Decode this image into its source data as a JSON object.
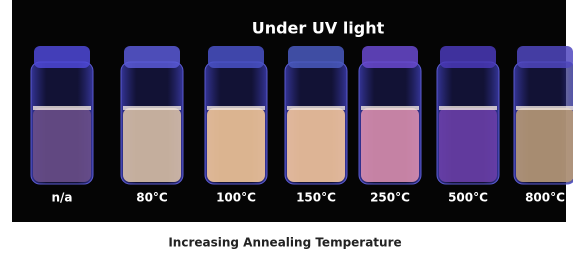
{
  "photo": {
    "title": "Under UV light",
    "labels": [
      "n/a",
      "80°C",
      "100°C",
      "150°C",
      "250°C",
      "500°C",
      "800°C"
    ]
  },
  "caption": "Increasing Annealing Temperature"
}
